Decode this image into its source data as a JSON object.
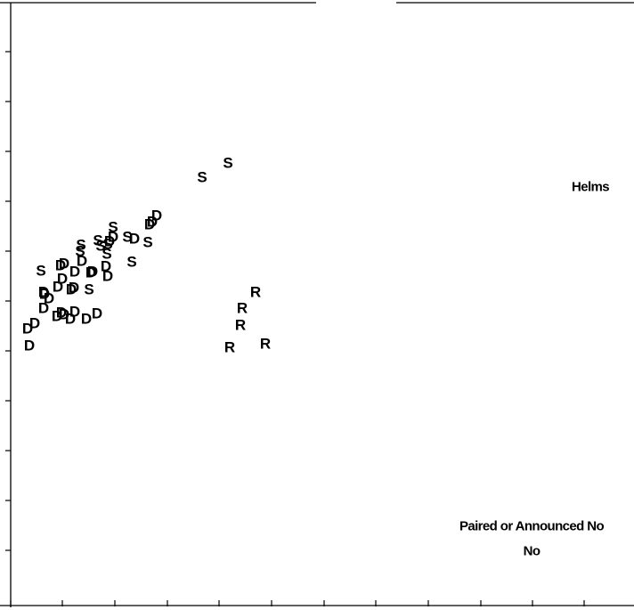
{
  "chart_data": {
    "type": "scatter",
    "title": "",
    "xlabel": "",
    "ylabel": "",
    "grid": false,
    "legend": "none",
    "xlim": [
      0,
      712
    ],
    "ylim": [
      0,
      685
    ],
    "series": [
      {
        "marker": "D",
        "points": [
          [
            33,
            388
          ],
          [
            31,
            369
          ],
          [
            39,
            363
          ],
          [
            49,
            346
          ],
          [
            50,
            330
          ],
          [
            49,
            328
          ],
          [
            55,
            335
          ],
          [
            64,
            355
          ],
          [
            69,
            351
          ],
          [
            72,
            353
          ],
          [
            79,
            358
          ],
          [
            84,
            350
          ],
          [
            97,
            358
          ],
          [
            109,
            352
          ],
          [
            65,
            322
          ],
          [
            70,
            313
          ],
          [
            80,
            325
          ],
          [
            83,
            323
          ],
          [
            84,
            305
          ],
          [
            68,
            298
          ],
          [
            72,
            296
          ],
          [
            92,
            293
          ],
          [
            102,
            306
          ],
          [
            104,
            305
          ],
          [
            119,
            299
          ],
          [
            121,
            310
          ],
          [
            123,
            271
          ],
          [
            127,
            266
          ],
          [
            151,
            268
          ],
          [
            168,
            252
          ],
          [
            171,
            249
          ],
          [
            176,
            242
          ]
        ]
      },
      {
        "marker": "S",
        "points": [
          [
            46,
            304
          ],
          [
            90,
            282
          ],
          [
            91,
            275
          ],
          [
            100,
            325
          ],
          [
            110,
            270
          ],
          [
            113,
            276
          ],
          [
            120,
            285
          ],
          [
            121,
            274
          ],
          [
            127,
            255
          ],
          [
            143,
            266
          ],
          [
            148,
            294
          ],
          [
            166,
            272
          ],
          [
            227,
            199
          ],
          [
            256,
            183
          ]
        ]
      },
      {
        "marker": "R",
        "points": [
          [
            287,
            328
          ],
          [
            272,
            346
          ],
          [
            270,
            365
          ],
          [
            258,
            390
          ],
          [
            298,
            386
          ]
        ]
      }
    ],
    "annotations": [
      {
        "text": "Helms",
        "x": 663,
        "y": 210
      },
      {
        "text": "Paired or Announced No",
        "x": 597,
        "y": 591
      },
      {
        "text": "No",
        "x": 597,
        "y": 619
      }
    ],
    "x_ticks": [
      12,
      70,
      129,
      188,
      246,
      305,
      364,
      422,
      481,
      540,
      598,
      656
    ],
    "y_ticks": [
      58,
      114,
      170,
      226,
      282,
      338,
      394,
      450,
      506,
      562,
      618
    ]
  }
}
